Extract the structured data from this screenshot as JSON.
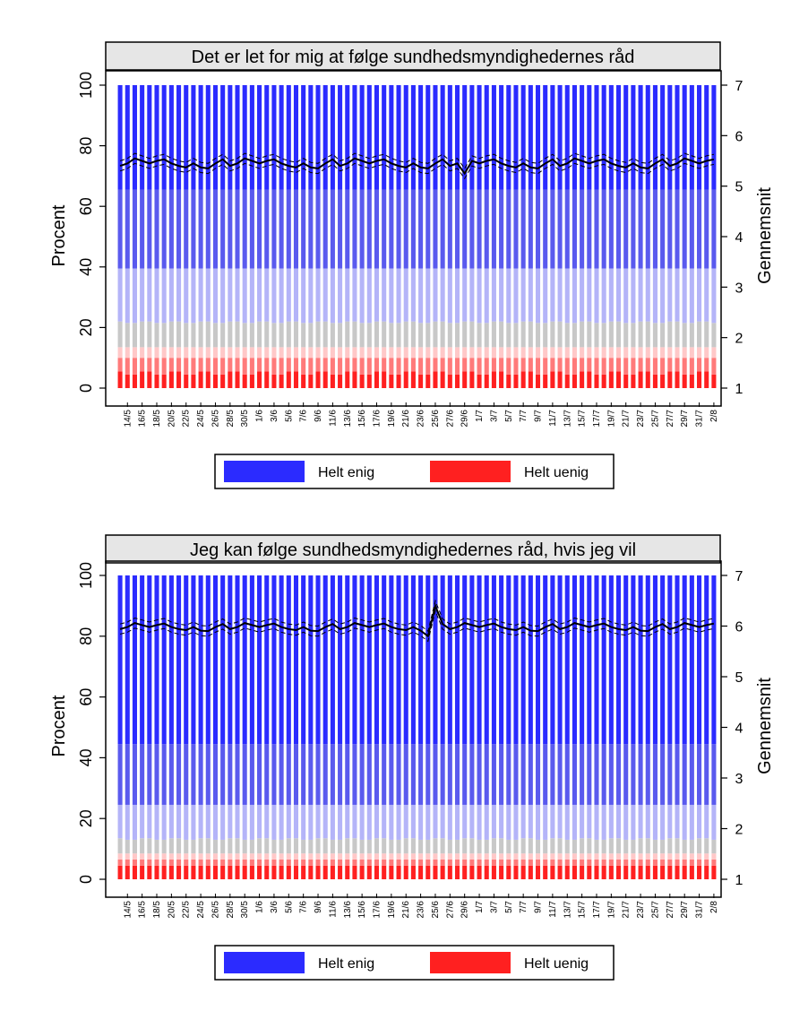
{
  "colors": {
    "helt_enig": "#2b2bff",
    "cat6": "#5a5aee",
    "cat5": "#b4b4f8",
    "cat4": "#c8c8c8",
    "cat3": "#ffc8c8",
    "cat2": "#ff7a7a",
    "helt_uenig": "#ff2020",
    "panel_header_bg": "#e6e6e6",
    "mean_line": "#000000"
  },
  "chart_data": [
    {
      "type": "bar",
      "stacked": true,
      "title": "Det er let for mig at følge sundhedsmyndighedernes råd",
      "ylabel": "Procent",
      "y2label": "Gennemsnit",
      "ylim": [
        0,
        100
      ],
      "y2lim": [
        1,
        7
      ],
      "yticks": [
        0,
        20,
        40,
        60,
        80,
        100
      ],
      "y2ticks": [
        1,
        2,
        3,
        4,
        5,
        6,
        7
      ],
      "x_tick_labels": [
        "14/5",
        "16/5",
        "18/5",
        "20/5",
        "22/5",
        "24/5",
        "26/5",
        "28/5",
        "30/5",
        "1/6",
        "3/6",
        "5/6",
        "7/6",
        "9/6",
        "11/6",
        "13/6",
        "15/6",
        "17/6",
        "19/6",
        "21/6",
        "23/6",
        "25/6",
        "27/6",
        "29/6",
        "1/7",
        "3/7",
        "5/7",
        "7/7",
        "9/7",
        "11/7",
        "13/7",
        "15/7",
        "17/7",
        "19/7",
        "21/7",
        "23/7",
        "25/7",
        "27/7",
        "29/7",
        "31/7",
        "2/8"
      ],
      "x_label_start": "14/5",
      "n_days": 82,
      "grid": false,
      "legend": {
        "position": "bottom",
        "entries": [
          "Helt enig",
          "Helt uenig"
        ]
      },
      "category_order_bottom_to_top": [
        "Helt uenig",
        "cat2",
        "cat3",
        "cat4",
        "cat5",
        "cat6",
        "Helt enig"
      ],
      "bands_upper_bounds": {
        "helt_uenig": [
          4,
          4,
          5,
          7
        ],
        "cat2": [
          8,
          9,
          11,
          12
        ],
        "cat3": [
          12,
          14,
          13,
          15
        ],
        "cat4": [
          19,
          21,
          22,
          25
        ],
        "cat5": [
          36,
          39,
          40,
          43
        ],
        "cat6": [
          64,
          66,
          65,
          67
        ]
      },
      "mean": {
        "base": 5.45,
        "variation": [
          0.05,
          -0.08,
          0.1,
          -0.05,
          0.08
        ],
        "ci_half_width": 0.1,
        "dips": [
          {
            "day": 47,
            "value": 5.25
          }
        ]
      }
    },
    {
      "type": "bar",
      "stacked": true,
      "title": "Jeg kan følge sundhedsmyndighedernes råd, hvis jeg vil",
      "ylabel": "Procent",
      "y2label": "Gennemsnit",
      "ylim": [
        0,
        100
      ],
      "y2lim": [
        1,
        7
      ],
      "yticks": [
        0,
        20,
        40,
        60,
        80,
        100
      ],
      "y2ticks": [
        1,
        2,
        3,
        4,
        5,
        6,
        7
      ],
      "x_tick_labels": [
        "14/5",
        "16/5",
        "18/5",
        "20/5",
        "22/5",
        "24/5",
        "26/5",
        "28/5",
        "30/5",
        "1/6",
        "3/6",
        "5/6",
        "7/6",
        "9/6",
        "11/6",
        "13/6",
        "15/6",
        "17/6",
        "19/6",
        "21/6",
        "23/6",
        "25/6",
        "27/6",
        "29/6",
        "1/7",
        "3/7",
        "5/7",
        "7/7",
        "9/7",
        "11/7",
        "13/7",
        "15/7",
        "17/7",
        "19/7",
        "21/7",
        "23/7",
        "25/7",
        "27/7",
        "29/7",
        "31/7",
        "2/8"
      ],
      "x_label_start": "14/5",
      "n_days": 82,
      "grid": false,
      "legend": {
        "position": "bottom",
        "entries": [
          "Helt enig",
          "Helt uenig"
        ]
      },
      "category_order_bottom_to_top": [
        "Helt uenig",
        "cat2",
        "cat3",
        "cat4",
        "cat5",
        "cat6",
        "Helt enig"
      ],
      "bands_upper_bounds": {
        "helt_uenig": [
          3,
          4,
          5,
          6
        ],
        "cat2": [
          5,
          6,
          7,
          8
        ],
        "cat3": [
          7,
          8,
          9,
          10
        ],
        "cat4": [
          11,
          12,
          14,
          16
        ],
        "cat5": [
          22,
          24,
          25,
          27
        ],
        "cat6": [
          43,
          45,
          44,
          46
        ]
      },
      "mean": {
        "base": 5.98,
        "variation": [
          0.04,
          -0.07,
          0.08,
          -0.04,
          0.06
        ],
        "ci_half_width": 0.1,
        "spikes": [
          {
            "day": 43,
            "value": 6.4
          },
          {
            "day": 42,
            "value": 5.8
          }
        ]
      }
    }
  ]
}
